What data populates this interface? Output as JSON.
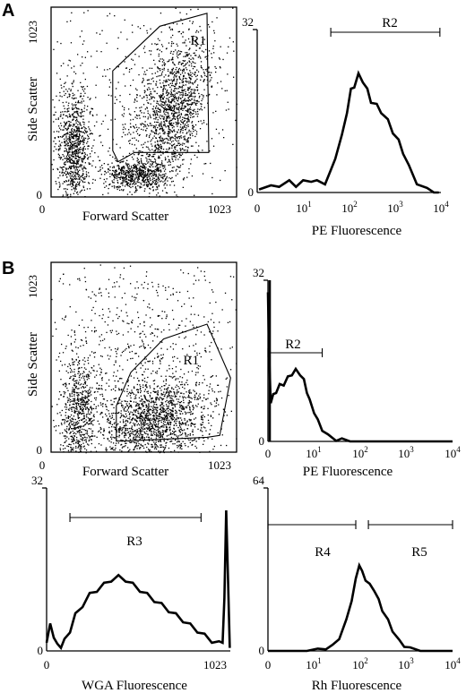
{
  "panels": [
    {
      "letter": "A",
      "row": 0
    },
    {
      "letter": "B",
      "row": 1
    }
  ],
  "chart_data": [
    {
      "id": "A-scatter",
      "type": "scatter",
      "xlabel": "Forward Scatter",
      "ylabel": "Side Scatter",
      "xlim": [
        0,
        1023
      ],
      "ylim": [
        0,
        1023
      ],
      "x_ticks": [
        "0",
        "1023"
      ],
      "y_ticks": [
        "0",
        "1023"
      ],
      "gate": {
        "label": "R1",
        "polygon": [
          [
            340,
            680
          ],
          [
            600,
            920
          ],
          [
            860,
            990
          ],
          [
            870,
            240
          ],
          [
            460,
            240
          ],
          [
            370,
            190
          ],
          [
            340,
            250
          ]
        ]
      },
      "population": "dense cloud gated by R1 plus debris at low forward scatter"
    },
    {
      "id": "A-histogram",
      "type": "line",
      "xlabel": "PE Fluorescence",
      "xscale": "log",
      "xlim": [
        1,
        10000
      ],
      "ylim": [
        0,
        32
      ],
      "y_ticks": [
        "0",
        "32"
      ],
      "x_ticks": [
        {
          "base": "0",
          "exp": ""
        },
        {
          "base": "10",
          "exp": "1"
        },
        {
          "base": "10",
          "exp": "2"
        },
        {
          "base": "10",
          "exp": "3"
        },
        {
          "base": "10",
          "exp": "4"
        }
      ],
      "marker": {
        "label": "R2",
        "range": [
          40,
          9500
        ]
      },
      "x": [
        1.1,
        2,
        3,
        5,
        7,
        10,
        15,
        20,
        30,
        40,
        50,
        70,
        90,
        110,
        130,
        160,
        200,
        250,
        300,
        400,
        500,
        700,
        900,
        1200,
        1500,
        2000,
        3000,
        5000,
        7000,
        9000
      ],
      "y": [
        1,
        1,
        1.5,
        2,
        1.5,
        2,
        2.5,
        2,
        2,
        4,
        7,
        11,
        16,
        20,
        21,
        23,
        22,
        20,
        18,
        17,
        16,
        14,
        12,
        10,
        8,
        5,
        2,
        0.5,
        0,
        0
      ]
    },
    {
      "id": "B-scatter",
      "type": "scatter",
      "xlabel": "Forward Scatter",
      "ylabel": "Side Scatter",
      "xlim": [
        0,
        1023
      ],
      "ylim": [
        0,
        1023
      ],
      "x_ticks": [
        "0",
        "1023"
      ],
      "y_ticks": [
        "0",
        "1023"
      ],
      "gate": {
        "label": "R1",
        "polygon": [
          [
            400,
            60
          ],
          [
            860,
            80
          ],
          [
            930,
            90
          ],
          [
            990,
            400
          ],
          [
            860,
            690
          ],
          [
            620,
            610
          ],
          [
            440,
            430
          ],
          [
            360,
            250
          ],
          [
            360,
            60
          ]
        ]
      },
      "population": "broad cloud gated by R1 plus events at low forward scatter"
    },
    {
      "id": "B-histogram-PE",
      "type": "line",
      "xlabel": "PE Fluorescence",
      "xscale": "log",
      "xlim": [
        1,
        10000
      ],
      "ylim": [
        0,
        32
      ],
      "y_ticks": [
        "0",
        "32"
      ],
      "x_ticks": [
        {
          "base": "0",
          "exp": ""
        },
        {
          "base": "10",
          "exp": "1"
        },
        {
          "base": "10",
          "exp": "2"
        },
        {
          "base": "10",
          "exp": "3"
        },
        {
          "base": "10",
          "exp": "4"
        }
      ],
      "marker": {
        "label": "R2",
        "range": [
          1,
          15
        ]
      },
      "x": [
        1,
        1.05,
        1.15,
        1.3,
        1.5,
        1.8,
        2.2,
        2.7,
        3.3,
        4,
        5,
        6,
        7,
        8,
        10,
        12,
        15,
        20,
        30,
        40,
        60,
        100,
        10000
      ],
      "y": [
        30,
        18,
        8,
        9,
        10,
        11,
        11.5,
        12.5,
        13.5,
        14,
        13.5,
        12,
        10,
        8,
        6,
        4,
        2.5,
        1,
        0.5,
        0.2,
        0,
        0,
        0
      ]
    },
    {
      "id": "B-histogram-WGA",
      "type": "line",
      "xlabel": "WGA Fluorescence",
      "xlim": [
        0,
        1023
      ],
      "ylim": [
        0,
        32
      ],
      "y_ticks": [
        "0",
        "32"
      ],
      "x_ticks": [
        {
          "base": "0",
          "exp": ""
        },
        {
          "base": "1023",
          "exp": ""
        }
      ],
      "marker": {
        "label": "R3",
        "range": [
          130,
          860
        ]
      },
      "x": [
        0,
        20,
        40,
        60,
        80,
        100,
        130,
        160,
        200,
        240,
        280,
        320,
        360,
        400,
        440,
        480,
        520,
        560,
        600,
        640,
        680,
        720,
        760,
        800,
        840,
        880,
        920,
        960,
        980,
        990,
        1000,
        1010,
        1020
      ],
      "y": [
        2,
        5,
        3,
        1,
        1,
        2,
        4,
        7,
        9,
        11,
        12,
        13,
        14,
        14.5,
        14,
        13,
        12,
        11,
        10,
        9,
        8,
        7,
        6,
        5,
        4,
        3,
        2,
        1.5,
        2,
        10,
        28,
        14,
        1
      ]
    },
    {
      "id": "B-histogram-Rh",
      "type": "line",
      "xlabel": "Rh Fluorescence",
      "xscale": "log",
      "xlim": [
        1,
        10000
      ],
      "ylim": [
        0,
        64
      ],
      "y_ticks": [
        "0",
        "64"
      ],
      "x_ticks": [
        {
          "base": "0",
          "exp": ""
        },
        {
          "base": "10",
          "exp": "1"
        },
        {
          "base": "10",
          "exp": "2"
        },
        {
          "base": "10",
          "exp": "3"
        },
        {
          "base": "10",
          "exp": "4"
        }
      ],
      "markers": [
        {
          "label": "R4",
          "range": [
            1,
            80
          ]
        },
        {
          "label": "R5",
          "range": [
            150,
            10000
          ]
        }
      ],
      "x": [
        1,
        3,
        7,
        12,
        18,
        25,
        35,
        50,
        65,
        80,
        95,
        110,
        130,
        160,
        200,
        250,
        300,
        400,
        500,
        700,
        900,
        1200,
        2000,
        10000
      ],
      "y": [
        0,
        0,
        0,
        0.5,
        1,
        2,
        5,
        12,
        20,
        28,
        34,
        31,
        28,
        26,
        24,
        20,
        16,
        12,
        8,
        4,
        2,
        1,
        0,
        0
      ]
    }
  ]
}
